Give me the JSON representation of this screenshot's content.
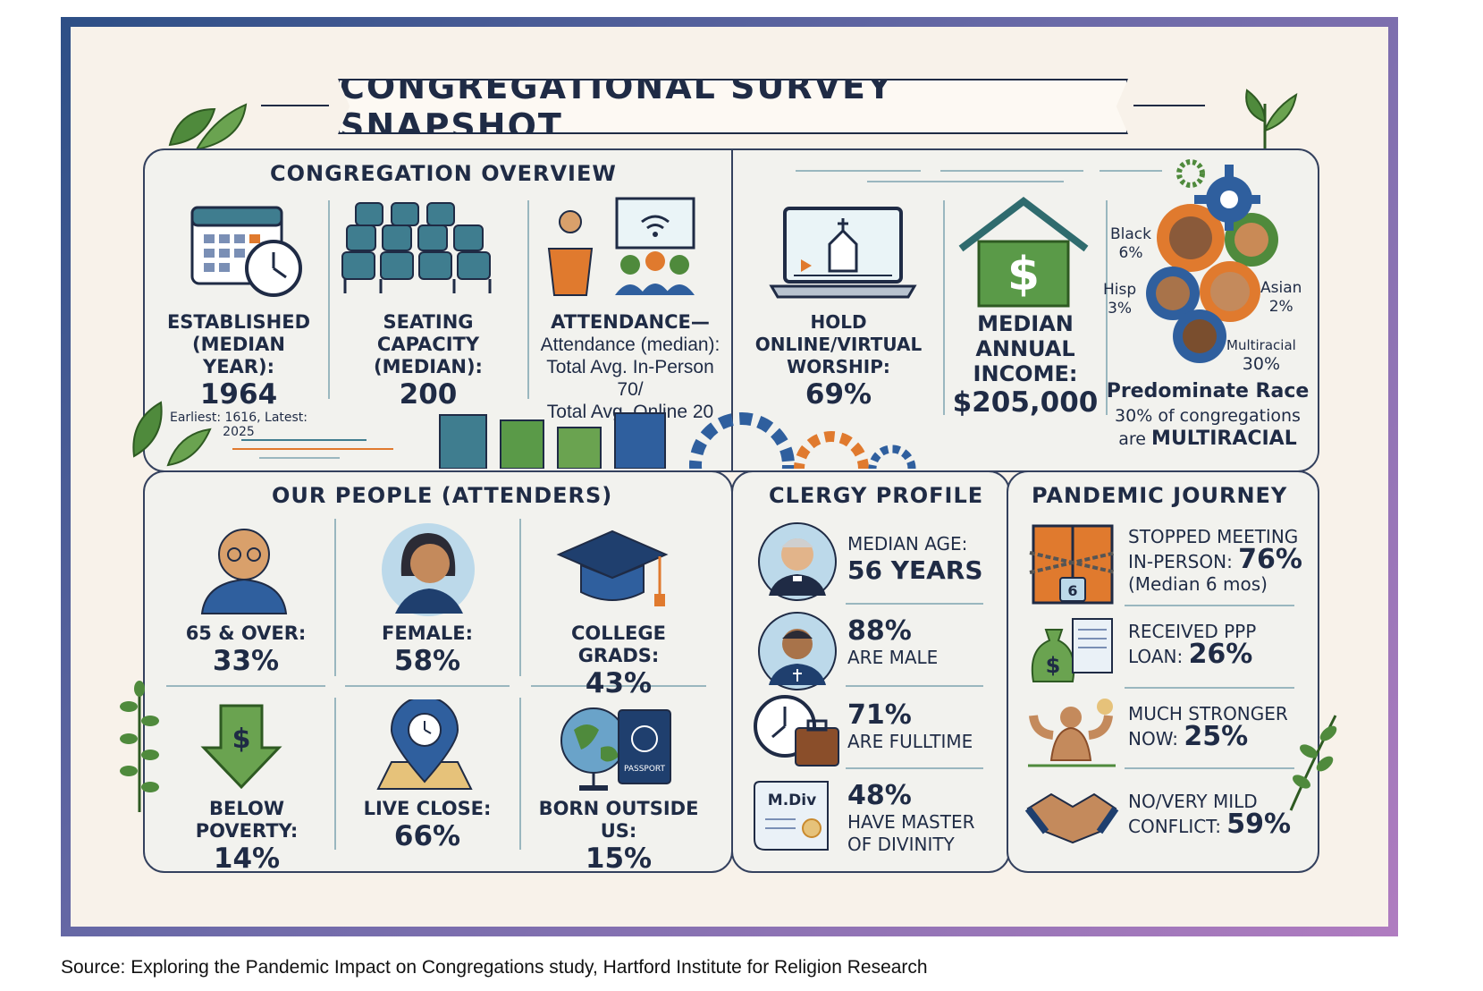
{
  "title": "CONGREGATIONAL SURVEY SNAPSHOT",
  "overview": {
    "title": "CONGREGATION OVERVIEW",
    "established_label": "ESTABLISHED (MEDIAN YEAR):",
    "established_value": "1964",
    "established_note": "Earliest: 1616, Latest: 2025",
    "seating_label": "SEATING CAPACITY (MEDIAN):",
    "seating_value": "200",
    "attendance_label": "ATTENDANCE—",
    "attendance_detail_1": "Attendance (median):",
    "attendance_detail_2": "Total Avg. In-Person 70/",
    "attendance_detail_3": "Total Avg. Online 20",
    "online_label": "HOLD ONLINE/VIRTUAL WORSHIP:",
    "online_value": "69%",
    "income_label": "MEDIAN ANNUAL INCOME:",
    "income_value": "$205,000",
    "race": {
      "black": "Black",
      "black_pct": "6%",
      "hisp": "Hisp",
      "hisp_pct": "3%",
      "asian": "Asian",
      "asian_pct": "2%",
      "multi": "Multiracial",
      "multi_pct": "30%",
      "headline": "Predominate Race",
      "line1": "30% of congregations",
      "line2_prefix": "are",
      "line2_bold": "MULTIRACIAL"
    }
  },
  "people": {
    "title": "OUR PEOPLE (ATTENDERS)",
    "items": [
      {
        "label": "65 & OVER:",
        "value": "33%"
      },
      {
        "label": "FEMALE:",
        "value": "58%"
      },
      {
        "label": "COLLEGE GRADS:",
        "value": "43%"
      },
      {
        "label": "BELOW POVERTY:",
        "value": "14%"
      },
      {
        "label": "LIVE CLOSE:",
        "value": "66%"
      },
      {
        "label": "BORN OUTSIDE US:",
        "value": "15%"
      }
    ],
    "passport_text": "PASSPORT"
  },
  "clergy": {
    "title": "CLERGY PROFILE",
    "age_label": "MEDIAN AGE:",
    "age_value": "56 YEARS",
    "male_value": "88%",
    "male_label": "ARE MALE",
    "fulltime_value": "71%",
    "fulltime_label": "ARE FULLTIME",
    "mdiv_value": "48%",
    "mdiv_label_1": "HAVE MASTER",
    "mdiv_label_2": "OF DIVINITY",
    "diploma_text": "M.Div"
  },
  "pandemic": {
    "title": "PANDEMIC JOURNEY",
    "stopped_1": "STOPPED MEETING",
    "stopped_2": "IN-PERSON:",
    "stopped_value": "76%",
    "stopped_note": "(Median 6 mos)",
    "lock_number": "6",
    "ppp_1": "RECEIVED PPP",
    "ppp_2": "LOAN:",
    "ppp_value": "26%",
    "stronger_1": "MUCH STRONGER",
    "stronger_2": "NOW:",
    "stronger_value": "25%",
    "conflict_1": "NO/VERY MILD",
    "conflict_2": "CONFLICT:",
    "conflict_value": "59%"
  },
  "source": "Source: Exploring the Pandemic Impact on Congregations study, Hartford Institute for Religion Research",
  "colors": {
    "navy": "#1f2b45",
    "teal": "#3f7d8f",
    "green": "#4f8a3c",
    "orange": "#e07a2e",
    "blue": "#2f5f9e"
  }
}
